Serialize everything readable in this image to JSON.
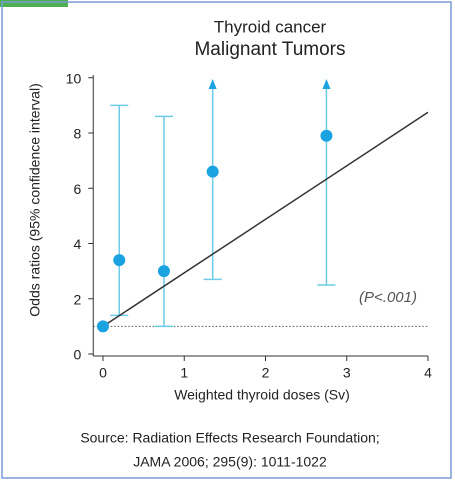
{
  "chart_data": {
    "type": "errorbar_scatter",
    "title": "Thyroid cancer",
    "subtitle": "Malignant Tumors",
    "x_label": "Weighted thyroid doses (Sv)",
    "y_label": "Odds ratios (95% confidence interval)",
    "annotation": "(P<.001)",
    "source": [
      "Source: Radiation Effects Research Foundation;",
      "JAMA 2006; 295(9): 1011-1022"
    ],
    "series": [
      {
        "x": [
          0,
          0.2,
          0.75,
          1.35,
          2.75
        ],
        "values": [
          1,
          3.4,
          3.0,
          6.6,
          7.9
        ],
        "lower": [
          null,
          1.4,
          1.0,
          2.7,
          2.5
        ],
        "upper": [
          null,
          9.0,
          8.6,
          null,
          null
        ],
        "color": "#1aa3e0",
        "error_color": "#6ccbe9"
      }
    ],
    "fit": {
      "x": [
        0,
        4
      ],
      "y": [
        1,
        8.75
      ],
      "color": "#333333"
    },
    "reference_line": 1,
    "xlim": [
      -0.12,
      4
    ],
    "ylim": [
      0,
      10.1
    ],
    "xticks": [
      0,
      1,
      2,
      3,
      4
    ],
    "yticks": [
      0,
      2,
      4,
      6,
      8,
      10
    ]
  }
}
